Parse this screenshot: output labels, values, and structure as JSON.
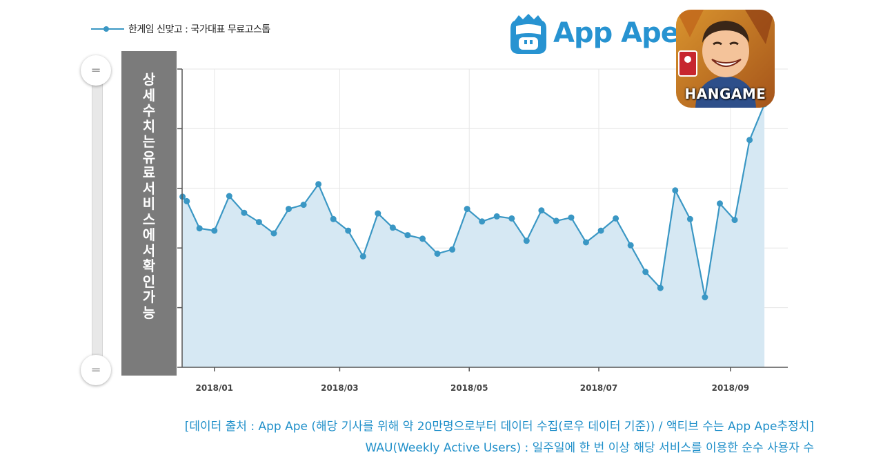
{
  "legend": {
    "series_name": "한게임 신맞고 : 국가대표 무료고스톱"
  },
  "logo": {
    "text": "App Ape",
    "icon": "monkey-face-icon"
  },
  "app_icon": {
    "label": "HANGAME"
  },
  "overlay": {
    "text": "상세 수치는 유료 서비스에서 확인 가능"
  },
  "slider": {
    "handle_glyph": "═"
  },
  "colors": {
    "line": "#3a97c4",
    "area": "#d6e8f3",
    "caption": "#1f8fc9",
    "logo": "#2793d1"
  },
  "captions": {
    "line1": "[데이터 출처 : App Ape (해당 기사를 위해 약 20만명으로부터 데이터 수집(로우 데이터 기준)) / 액티브 수는 App Ape추정치]",
    "line2": "WAU(Weekly Active Users) : 일주일에 한 번 이상 해당 서비스를 이용한 순수 사용자 수"
  },
  "chart_data": {
    "type": "area",
    "title": "",
    "xlabel": "",
    "ylabel": "",
    "y_tick_labels_shown": false,
    "grid": true,
    "legend_position": "top-left",
    "x_tick_labels": [
      "2018/01",
      "2018/03",
      "2018/05",
      "2018/07",
      "2018/09"
    ],
    "x_tick_dates": [
      "2018-01-01",
      "2018-03-01",
      "2018-05-01",
      "2018-07-01",
      "2018-09-01"
    ],
    "series": [
      {
        "name": "한게임 신맞고 : 국가대표 무료고스톱",
        "x": [
          "2017-12-17",
          "2017-12-19",
          "2017-12-25",
          "2018-01-01",
          "2018-01-08",
          "2018-01-15",
          "2018-01-22",
          "2018-01-29",
          "2018-02-05",
          "2018-02-12",
          "2018-02-19",
          "2018-02-26",
          "2018-03-05",
          "2018-03-12",
          "2018-03-19",
          "2018-03-26",
          "2018-04-02",
          "2018-04-09",
          "2018-04-16",
          "2018-04-23",
          "2018-04-30",
          "2018-05-07",
          "2018-05-14",
          "2018-05-21",
          "2018-05-28",
          "2018-06-04",
          "2018-06-11",
          "2018-06-18",
          "2018-06-25",
          "2018-07-02",
          "2018-07-09",
          "2018-07-16",
          "2018-07-23",
          "2018-07-30",
          "2018-08-06",
          "2018-08-13",
          "2018-08-20",
          "2018-08-27",
          "2018-09-03",
          "2018-09-10",
          "2018-09-17"
        ],
        "values": [
          57.2,
          55.7,
          46.6,
          45.8,
          57.4,
          51.8,
          48.7,
          44.9,
          53.1,
          54.5,
          61.4,
          49.7,
          45.8,
          37.2,
          51.6,
          46.8,
          44.3,
          43.1,
          38.1,
          39.5,
          53.1,
          48.9,
          50.6,
          49.9,
          42.4,
          52.6,
          49.1,
          50.2,
          41.9,
          45.8,
          49.9,
          40.9,
          32.0,
          26.6,
          59.3,
          49.7,
          23.5,
          54.9,
          49.4,
          76.2,
          88.2
        ]
      }
    ],
    "ylim": [
      0,
      100
    ]
  }
}
